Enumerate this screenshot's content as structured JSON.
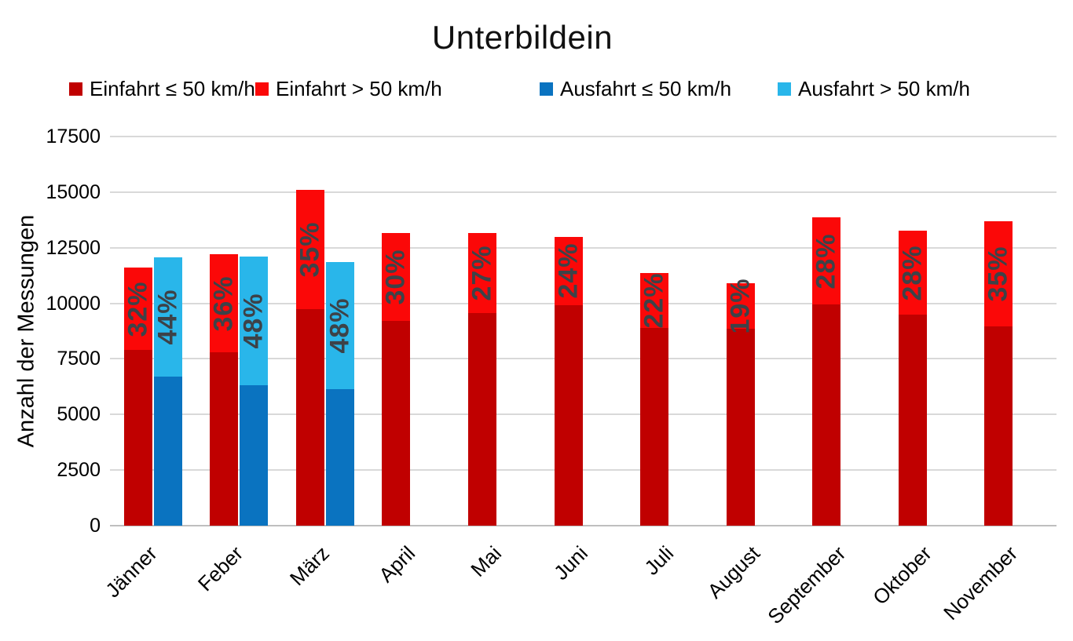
{
  "chart_data": {
    "type": "bar",
    "title": "Unterbildein",
    "ylabel": "Anzahl der Messungen",
    "xlabel": "",
    "ylim": [
      0,
      17500
    ],
    "yticks": [
      0,
      2500,
      5000,
      7500,
      10000,
      12500,
      15000,
      17500
    ],
    "grid": true,
    "legend_position": "top",
    "bar_mode": "stacked-grouped",
    "categories": [
      "Jänner",
      "Feber",
      "März",
      "April",
      "Mai",
      "Juni",
      "Juli",
      "August",
      "September",
      "Oktober",
      "November"
    ],
    "series": [
      {
        "name": "Einfahrt ≤ 50 km/h",
        "stack": "einfahrt",
        "color": "#c00000",
        "values": [
          7900,
          7800,
          9750,
          9200,
          9550,
          9900,
          8900,
          8850,
          9950,
          9500,
          8950
        ]
      },
      {
        "name": "Einfahrt > 50 km/h",
        "stack": "einfahrt",
        "color": "#fb0808",
        "values": [
          3700,
          4400,
          5350,
          3950,
          3600,
          3100,
          2450,
          2050,
          3900,
          3750,
          4750
        ]
      },
      {
        "name": "Ausfahrt ≤ 50 km/h",
        "stack": "ausfahrt",
        "color": "#0a73c0",
        "values": [
          6700,
          6300,
          6150,
          0,
          0,
          0,
          0,
          0,
          0,
          0,
          0
        ]
      },
      {
        "name": "Ausfahrt > 50 km/h",
        "stack": "ausfahrt",
        "color": "#29b6ea",
        "values": [
          5350,
          5800,
          5700,
          0,
          0,
          0,
          0,
          0,
          0,
          0,
          0
        ]
      }
    ],
    "percent_labels": {
      "einfahrt": [
        "32%",
        "36%",
        "35%",
        "30%",
        "27%",
        "24%",
        "22%",
        "19%",
        "28%",
        "28%",
        "35%"
      ],
      "ausfahrt": [
        "44%",
        "48%",
        "48%",
        "",
        "",
        "",
        "",
        "",
        "",
        "",
        ""
      ]
    },
    "percent_label_color": "#3d4248",
    "gridline_color": "#d9d9d9",
    "baseline_color": "#bfbfbf"
  }
}
